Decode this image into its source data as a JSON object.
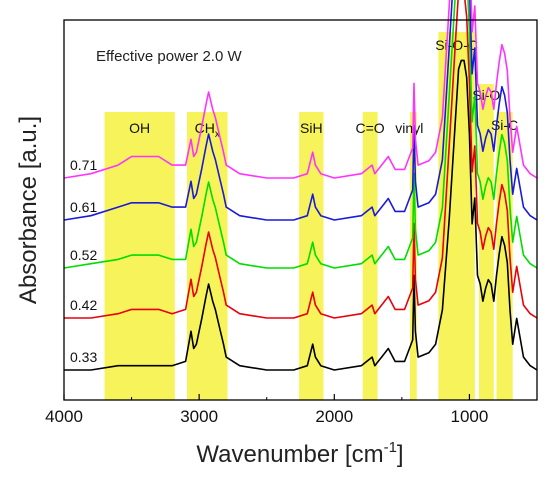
{
  "chart_data": {
    "type": "line",
    "title": "",
    "annotation": "Effective power 2.0 W",
    "xlabel": "Wavenumber [cm",
    "xlabel_sup": "-1",
    "xlabel_end": "]",
    "ylabel": "Absorbance [a.u.]",
    "xlim": [
      4000,
      500
    ],
    "x_reversed": true,
    "xticks": [
      4000,
      3000,
      2000,
      1000
    ],
    "xtick_labels": [
      "4000",
      "3000",
      "2000",
      "1000"
    ],
    "grid": false,
    "bands": [
      {
        "label": "OH",
        "x_from": 3700,
        "x_to": 3180
      },
      {
        "label": "CH",
        "sub": "x",
        "x_from": 3090,
        "x_to": 2790
      },
      {
        "label": "SiH",
        "x_from": 2260,
        "x_to": 2080
      },
      {
        "label": "C=O",
        "x_from": 1790,
        "x_to": 1680
      },
      {
        "label": "vinyl",
        "x_from": 1440,
        "x_to": 1390
      },
      {
        "label": "Si-O-C",
        "x_from": 1230,
        "x_to": 960
      },
      {
        "label": "Si-O",
        "x_from": 930,
        "x_to": 820
      },
      {
        "label": "Si-C",
        "x_from": 800,
        "x_to": 680
      }
    ],
    "band_color": "#f7f35a",
    "series": [
      {
        "name": "0.33",
        "color": "#000000",
        "baseline": 0,
        "x": [
          4000,
          3800,
          3600,
          3500,
          3400,
          3300,
          3200,
          3100,
          3060,
          3040,
          3020,
          2980,
          2950,
          2930,
          2900,
          2880,
          2850,
          2820,
          2800,
          2700,
          2500,
          2300,
          2200,
          2160,
          2140,
          2100,
          2000,
          1800,
          1720,
          1700,
          1650,
          1600,
          1550,
          1480,
          1420,
          1410,
          1400,
          1380,
          1300,
          1250,
          1200,
          1150,
          1100,
          1080,
          1060,
          1040,
          1020,
          1000,
          980,
          960,
          940,
          920,
          900,
          880,
          860,
          840,
          820,
          800,
          780,
          760,
          740,
          720,
          700,
          680,
          650,
          600,
          550,
          500
        ],
        "y": [
          0.0,
          0.0,
          0.01,
          0.01,
          0.01,
          0.01,
          0.01,
          0.02,
          0.09,
          0.05,
          0.06,
          0.12,
          0.17,
          0.2,
          0.16,
          0.14,
          0.1,
          0.06,
          0.03,
          0.01,
          0.0,
          0.0,
          0.01,
          0.06,
          0.03,
          0.01,
          0.0,
          0.01,
          0.03,
          0.01,
          0.03,
          0.05,
          0.02,
          0.02,
          0.07,
          0.22,
          0.09,
          0.03,
          0.04,
          0.06,
          0.14,
          0.35,
          0.6,
          0.7,
          0.72,
          0.72,
          0.68,
          0.55,
          0.34,
          0.4,
          0.22,
          0.2,
          0.16,
          0.19,
          0.21,
          0.2,
          0.16,
          0.22,
          0.27,
          0.31,
          0.29,
          0.25,
          0.14,
          0.06,
          0.12,
          0.03,
          0.01,
          0.0
        ]
      },
      {
        "name": "0.42",
        "color": "#e8000b",
        "baseline": 1,
        "x": [
          4000,
          3800,
          3600,
          3500,
          3400,
          3300,
          3200,
          3100,
          3060,
          3040,
          3020,
          2980,
          2950,
          2930,
          2900,
          2880,
          2850,
          2820,
          2800,
          2700,
          2500,
          2300,
          2200,
          2160,
          2140,
          2100,
          2000,
          1800,
          1720,
          1700,
          1650,
          1600,
          1550,
          1480,
          1420,
          1410,
          1400,
          1380,
          1300,
          1250,
          1200,
          1150,
          1100,
          1080,
          1060,
          1040,
          1020,
          1000,
          980,
          960,
          940,
          920,
          900,
          880,
          860,
          840,
          820,
          800,
          780,
          760,
          740,
          720,
          700,
          680,
          650,
          600,
          550,
          500
        ],
        "y": [
          0.0,
          0.0,
          0.01,
          0.02,
          0.02,
          0.02,
          0.01,
          0.02,
          0.09,
          0.05,
          0.06,
          0.12,
          0.17,
          0.2,
          0.16,
          0.14,
          0.1,
          0.06,
          0.03,
          0.01,
          0.0,
          0.0,
          0.01,
          0.06,
          0.03,
          0.01,
          0.0,
          0.01,
          0.03,
          0.01,
          0.03,
          0.05,
          0.02,
          0.02,
          0.07,
          0.22,
          0.09,
          0.03,
          0.04,
          0.06,
          0.14,
          0.4,
          0.66,
          0.76,
          0.78,
          0.76,
          0.7,
          0.55,
          0.34,
          0.4,
          0.22,
          0.2,
          0.16,
          0.19,
          0.21,
          0.2,
          0.16,
          0.22,
          0.27,
          0.31,
          0.29,
          0.25,
          0.14,
          0.06,
          0.12,
          0.03,
          0.01,
          0.0
        ]
      },
      {
        "name": "0.52",
        "color": "#00dd00",
        "baseline": 2,
        "x": [
          4000,
          3800,
          3600,
          3500,
          3400,
          3300,
          3200,
          3100,
          3060,
          3040,
          3020,
          2980,
          2950,
          2930,
          2900,
          2880,
          2850,
          2820,
          2800,
          2700,
          2500,
          2300,
          2200,
          2160,
          2140,
          2100,
          2000,
          1800,
          1720,
          1700,
          1650,
          1600,
          1550,
          1480,
          1420,
          1410,
          1400,
          1380,
          1300,
          1250,
          1200,
          1150,
          1100,
          1080,
          1060,
          1040,
          1020,
          1000,
          980,
          960,
          940,
          920,
          900,
          880,
          860,
          840,
          820,
          800,
          780,
          760,
          740,
          720,
          700,
          680,
          650,
          600,
          550,
          500
        ],
        "y": [
          0.0,
          0.01,
          0.02,
          0.03,
          0.03,
          0.03,
          0.02,
          0.02,
          0.09,
          0.05,
          0.06,
          0.12,
          0.17,
          0.2,
          0.16,
          0.14,
          0.1,
          0.06,
          0.03,
          0.01,
          0.0,
          0.0,
          0.01,
          0.06,
          0.03,
          0.01,
          0.0,
          0.01,
          0.03,
          0.01,
          0.03,
          0.05,
          0.02,
          0.02,
          0.07,
          0.22,
          0.09,
          0.03,
          0.04,
          0.06,
          0.14,
          0.4,
          0.66,
          0.76,
          0.78,
          0.76,
          0.7,
          0.55,
          0.34,
          0.4,
          0.22,
          0.2,
          0.16,
          0.19,
          0.21,
          0.2,
          0.16,
          0.22,
          0.27,
          0.31,
          0.29,
          0.25,
          0.14,
          0.06,
          0.12,
          0.03,
          0.01,
          0.0
        ]
      },
      {
        "name": "0.61",
        "color": "#1a1adc",
        "baseline": 3,
        "x": [
          4000,
          3800,
          3600,
          3500,
          3400,
          3300,
          3200,
          3100,
          3060,
          3040,
          3020,
          2980,
          2950,
          2930,
          2900,
          2880,
          2850,
          2820,
          2800,
          2700,
          2500,
          2300,
          2200,
          2160,
          2140,
          2100,
          2000,
          1800,
          1720,
          1700,
          1650,
          1600,
          1550,
          1480,
          1420,
          1410,
          1400,
          1380,
          1300,
          1250,
          1200,
          1150,
          1100,
          1080,
          1060,
          1040,
          1020,
          1000,
          980,
          960,
          940,
          920,
          900,
          880,
          860,
          840,
          820,
          800,
          780,
          760,
          740,
          720,
          700,
          680,
          650,
          600,
          550,
          500
        ],
        "y": [
          0.0,
          0.01,
          0.03,
          0.04,
          0.04,
          0.04,
          0.03,
          0.03,
          0.09,
          0.05,
          0.06,
          0.12,
          0.17,
          0.2,
          0.16,
          0.14,
          0.1,
          0.06,
          0.03,
          0.01,
          0.0,
          0.0,
          0.01,
          0.06,
          0.03,
          0.01,
          0.0,
          0.01,
          0.03,
          0.01,
          0.03,
          0.05,
          0.02,
          0.02,
          0.07,
          0.22,
          0.09,
          0.03,
          0.04,
          0.06,
          0.14,
          0.4,
          0.66,
          0.76,
          0.78,
          0.76,
          0.7,
          0.55,
          0.34,
          0.4,
          0.22,
          0.2,
          0.16,
          0.19,
          0.21,
          0.2,
          0.16,
          0.22,
          0.27,
          0.31,
          0.29,
          0.25,
          0.14,
          0.06,
          0.12,
          0.03,
          0.01,
          0.0
        ]
      },
      {
        "name": "0.71",
        "color": "#ff33ff",
        "baseline": 4,
        "x": [
          4000,
          3800,
          3600,
          3500,
          3400,
          3300,
          3200,
          3100,
          3060,
          3040,
          3020,
          2980,
          2950,
          2930,
          2900,
          2880,
          2850,
          2820,
          2800,
          2700,
          2500,
          2300,
          2200,
          2160,
          2140,
          2100,
          2000,
          1800,
          1720,
          1700,
          1650,
          1600,
          1550,
          1480,
          1420,
          1410,
          1400,
          1380,
          1300,
          1250,
          1200,
          1150,
          1100,
          1080,
          1060,
          1040,
          1020,
          1000,
          980,
          960,
          940,
          920,
          900,
          880,
          860,
          840,
          820,
          800,
          780,
          760,
          740,
          720,
          700,
          680,
          650,
          600,
          550,
          500
        ],
        "y": [
          0.0,
          0.01,
          0.03,
          0.05,
          0.05,
          0.05,
          0.03,
          0.03,
          0.09,
          0.05,
          0.06,
          0.12,
          0.17,
          0.2,
          0.16,
          0.14,
          0.1,
          0.06,
          0.03,
          0.01,
          0.0,
          0.0,
          0.01,
          0.06,
          0.03,
          0.01,
          0.0,
          0.01,
          0.03,
          0.01,
          0.03,
          0.05,
          0.02,
          0.02,
          0.07,
          0.22,
          0.09,
          0.03,
          0.04,
          0.06,
          0.14,
          0.4,
          0.66,
          0.76,
          0.78,
          0.76,
          0.7,
          0.55,
          0.34,
          0.4,
          0.22,
          0.2,
          0.16,
          0.19,
          0.21,
          0.2,
          0.16,
          0.22,
          0.27,
          0.31,
          0.29,
          0.25,
          0.14,
          0.06,
          0.12,
          0.03,
          0.01,
          0.0
        ]
      }
    ]
  }
}
